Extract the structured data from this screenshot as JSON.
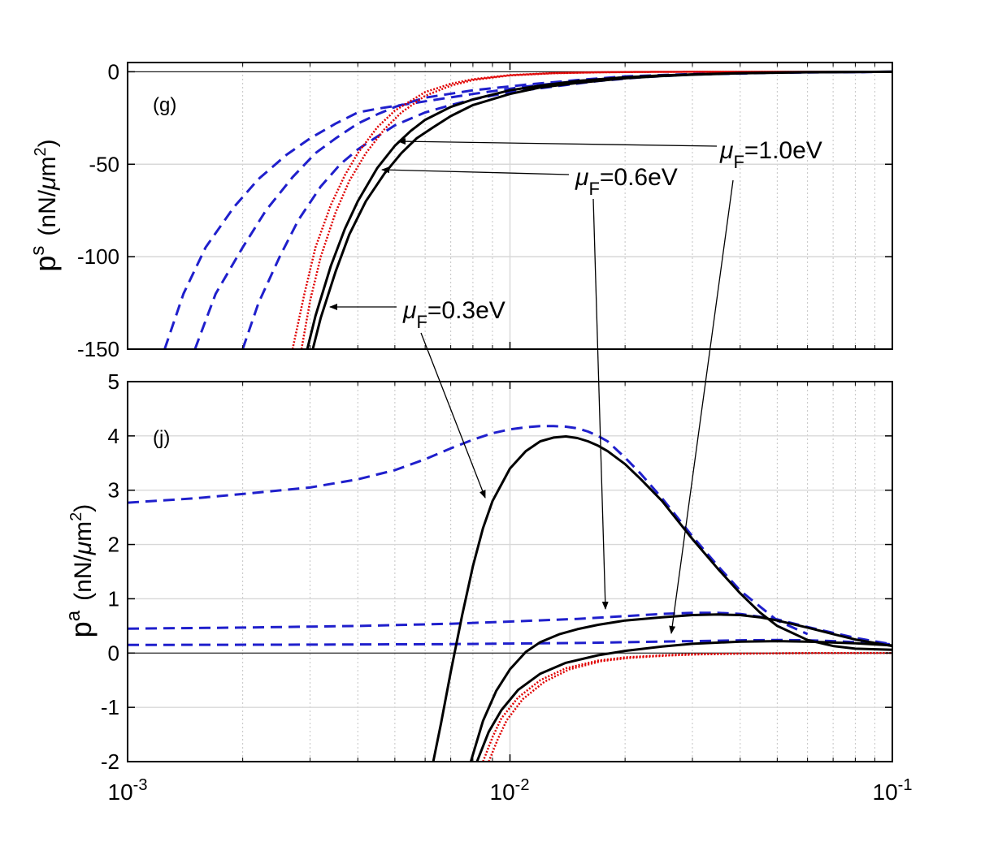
{
  "chart_data": [
    {
      "id": "g",
      "type": "line",
      "panel_label": "(g)",
      "xscale": "log",
      "xlim": [
        0.001,
        0.1
      ],
      "ylim": [
        -150,
        5
      ],
      "yticks": [
        0,
        -50,
        -100,
        -150
      ],
      "ytick_labels": [
        "0",
        "-50",
        "-100",
        "-150"
      ],
      "ylabel": {
        "base": "p",
        "sup": "s",
        "units_open": "(nN/",
        "mu": "μ",
        "units_mid": "m",
        "units_sup": "2",
        "units_close": ")"
      },
      "grid": true,
      "annotations": [
        {
          "mu": "μ",
          "sub": "F",
          "value": "=1.0eV",
          "points_to": [
            0.005,
            -34
          ]
        },
        {
          "mu": "μ",
          "sub": "F",
          "value": "=0.6eV",
          "points_to": [
            0.0046,
            -50
          ]
        },
        {
          "mu": "μ",
          "sub": "F",
          "value": "=0.3eV",
          "points_to": [
            0.0033,
            -127
          ]
        }
      ],
      "series": [
        {
          "name": "s-blue-dashed-a",
          "color": "#1f1fcc",
          "style": "dashed",
          "x": [
            0.00125,
            0.0014,
            0.0016,
            0.0019,
            0.0022,
            0.0026,
            0.003,
            0.0035,
            0.004,
            0.0045,
            0.006,
            0.008,
            0.011,
            0.015,
            0.02,
            0.03,
            0.05,
            0.1
          ],
          "y": [
            -150,
            -120,
            -95,
            -73,
            -58,
            -45,
            -36,
            -28,
            -22,
            -20,
            -16,
            -12,
            -8,
            -5,
            -3,
            -1.5,
            -0.5,
            0
          ]
        },
        {
          "name": "s-blue-dashed-b",
          "color": "#1f1fcc",
          "style": "dashed",
          "x": [
            0.0015,
            0.0017,
            0.002,
            0.0023,
            0.0027,
            0.0031,
            0.0035,
            0.004,
            0.0045,
            0.005,
            0.006,
            0.008,
            0.011,
            0.015,
            0.02,
            0.03,
            0.05,
            0.1
          ],
          "y": [
            -150,
            -120,
            -95,
            -75,
            -57,
            -44,
            -36,
            -28,
            -23,
            -19,
            -14,
            -10,
            -7,
            -4.5,
            -2.5,
            -1.2,
            -0.4,
            0
          ]
        },
        {
          "name": "s-blue-dashed-c",
          "color": "#1f1fcc",
          "style": "dashed",
          "x": [
            0.002,
            0.0022,
            0.0025,
            0.0028,
            0.0032,
            0.0036,
            0.004,
            0.0045,
            0.005,
            0.006,
            0.007,
            0.008,
            0.01,
            0.013,
            0.017,
            0.022,
            0.03,
            0.05,
            0.1
          ],
          "y": [
            -150,
            -125,
            -100,
            -80,
            -62,
            -50,
            -42,
            -35,
            -29,
            -22,
            -18,
            -15,
            -11,
            -8,
            -5,
            -3,
            -1.5,
            -0.4,
            0
          ]
        },
        {
          "name": "s-red-dotted-a",
          "color": "#e00000",
          "style": "dotted",
          "x": [
            0.0027,
            0.0029,
            0.0031,
            0.0034,
            0.0037,
            0.004,
            0.0045,
            0.005,
            0.006,
            0.007,
            0.008,
            0.01,
            0.013,
            0.017,
            0.022,
            0.03,
            0.05,
            0.1
          ],
          "y": [
            -150,
            -120,
            -95,
            -72,
            -56,
            -44,
            -30,
            -21,
            -11,
            -6.5,
            -4,
            -1.8,
            -0.7,
            -0.25,
            -0.1,
            0,
            0,
            0
          ]
        },
        {
          "name": "s-red-dotted-b",
          "color": "#e00000",
          "style": "dotted",
          "x": [
            0.00285,
            0.003,
            0.0032,
            0.0035,
            0.0038,
            0.0042,
            0.0047,
            0.0052,
            0.006,
            0.007,
            0.008,
            0.01,
            0.013,
            0.017,
            0.022,
            0.03,
            0.05,
            0.1
          ],
          "y": [
            -150,
            -124,
            -100,
            -76,
            -59,
            -44,
            -31,
            -22,
            -13,
            -7.5,
            -4.5,
            -2,
            -0.8,
            -0.3,
            -0.1,
            0,
            0,
            0
          ]
        },
        {
          "name": "s-black-solid-a",
          "color": "#000000",
          "style": "solid",
          "x": [
            0.00295,
            0.0031,
            0.0034,
            0.0037,
            0.004,
            0.0045,
            0.005,
            0.0055,
            0.006,
            0.007,
            0.008,
            0.01,
            0.012,
            0.015,
            0.02,
            0.025,
            0.03,
            0.04,
            0.06,
            0.1
          ],
          "y": [
            -150,
            -132,
            -105,
            -85,
            -70,
            -52,
            -40,
            -32,
            -26,
            -19,
            -15,
            -10,
            -7.5,
            -5,
            -3,
            -2,
            -1.4,
            -0.7,
            -0.2,
            0
          ]
        },
        {
          "name": "s-black-solid-b",
          "color": "#000000",
          "style": "solid",
          "x": [
            0.00305,
            0.0032,
            0.0035,
            0.0038,
            0.0042,
            0.0047,
            0.0052,
            0.0057,
            0.0063,
            0.007,
            0.008,
            0.01,
            0.012,
            0.015,
            0.02,
            0.025,
            0.03,
            0.04,
            0.06,
            0.1
          ],
          "y": [
            -150,
            -133,
            -108,
            -88,
            -70,
            -55,
            -44,
            -36,
            -30,
            -24,
            -18,
            -12,
            -8.5,
            -6,
            -3.5,
            -2.3,
            -1.6,
            -0.8,
            -0.25,
            0
          ]
        }
      ]
    },
    {
      "id": "j",
      "type": "line",
      "panel_label": "(j)",
      "xscale": "log",
      "xlim": [
        0.001,
        0.1
      ],
      "ylim": [
        -2,
        5
      ],
      "xticks": [
        0.001,
        0.01,
        0.1
      ],
      "xtick_labels": [
        {
          "base": "10",
          "exp": "-3"
        },
        {
          "base": "10",
          "exp": "-2"
        },
        {
          "base": "10",
          "exp": "-1"
        }
      ],
      "yticks": [
        5,
        4,
        3,
        2,
        1,
        0,
        -1,
        -2
      ],
      "ytick_labels": [
        "5",
        "4",
        "3",
        "2",
        "1",
        "0",
        "-1",
        "-2"
      ],
      "ylabel": {
        "base": "p",
        "sup": "a",
        "units_open": "(nN/",
        "mu": "μ",
        "units_mid": "m",
        "units_sup": "2",
        "units_close": ")"
      },
      "grid": true,
      "series": [
        {
          "name": "a-blue-dashed-0.3",
          "color": "#1f1fcc",
          "style": "dashed",
          "x": [
            0.001,
            0.0015,
            0.002,
            0.003,
            0.004,
            0.005,
            0.006,
            0.007,
            0.008,
            0.009,
            0.01,
            0.011,
            0.012,
            0.013,
            0.014,
            0.015,
            0.016,
            0.017,
            0.018,
            0.02,
            0.022,
            0.025,
            0.03,
            0.035,
            0.04,
            0.05,
            0.06
          ],
          "y": [
            2.77,
            2.85,
            2.93,
            3.05,
            3.2,
            3.37,
            3.57,
            3.77,
            3.93,
            4.05,
            4.12,
            4.16,
            4.18,
            4.18,
            4.17,
            4.14,
            4.08,
            4.0,
            3.9,
            3.6,
            3.3,
            2.85,
            2.15,
            1.6,
            1.15,
            0.6,
            0.35
          ]
        },
        {
          "name": "a-blue-dashed-0.6",
          "color": "#1f1fcc",
          "style": "dashed",
          "x": [
            0.001,
            0.002,
            0.004,
            0.007,
            0.01,
            0.015,
            0.02,
            0.025,
            0.03,
            0.035,
            0.04,
            0.05,
            0.06,
            0.08,
            0.1
          ],
          "y": [
            0.45,
            0.47,
            0.5,
            0.54,
            0.58,
            0.63,
            0.68,
            0.72,
            0.74,
            0.74,
            0.72,
            0.62,
            0.48,
            0.28,
            0.16
          ]
        },
        {
          "name": "a-blue-dashed-1.0",
          "color": "#1f1fcc",
          "style": "dashed",
          "x": [
            0.001,
            0.003,
            0.007,
            0.01,
            0.015,
            0.02,
            0.03,
            0.04,
            0.05,
            0.06,
            0.07,
            0.08,
            0.1
          ],
          "y": [
            0.15,
            0.155,
            0.165,
            0.175,
            0.185,
            0.2,
            0.22,
            0.235,
            0.24,
            0.235,
            0.22,
            0.2,
            0.16
          ]
        },
        {
          "name": "a-red-dotted-a",
          "color": "#e00000",
          "style": "dotted",
          "x": [
            0.0085,
            0.009,
            0.0095,
            0.0105,
            0.012,
            0.014,
            0.017,
            0.02,
            0.025,
            0.03,
            0.04,
            0.06,
            0.1
          ],
          "y": [
            -2,
            -1.55,
            -1.2,
            -0.82,
            -0.5,
            -0.28,
            -0.14,
            -0.08,
            -0.04,
            -0.02,
            -0.01,
            0,
            0
          ]
        },
        {
          "name": "a-red-dotted-b",
          "color": "#e00000",
          "style": "dotted",
          "x": [
            0.0088,
            0.0093,
            0.0098,
            0.0108,
            0.0123,
            0.0143,
            0.0173,
            0.0205,
            0.026,
            0.031,
            0.041,
            0.062,
            0.1
          ],
          "y": [
            -2,
            -1.58,
            -1.24,
            -0.85,
            -0.53,
            -0.3,
            -0.15,
            -0.09,
            -0.045,
            -0.025,
            -0.01,
            0,
            0
          ]
        },
        {
          "name": "a-black-solid-0.3",
          "color": "#000000",
          "style": "solid",
          "x": [
            0.0063,
            0.0066,
            0.007,
            0.0075,
            0.008,
            0.0085,
            0.009,
            0.01,
            0.011,
            0.012,
            0.013,
            0.014,
            0.015,
            0.016,
            0.017,
            0.018,
            0.02,
            0.022,
            0.025,
            0.03,
            0.035,
            0.04,
            0.045,
            0.05,
            0.06,
            0.07,
            0.08,
            0.1
          ],
          "y": [
            -2,
            -1.3,
            -0.35,
            0.7,
            1.6,
            2.3,
            2.8,
            3.4,
            3.72,
            3.9,
            3.97,
            3.99,
            3.96,
            3.9,
            3.82,
            3.72,
            3.48,
            3.2,
            2.8,
            2.1,
            1.55,
            1.1,
            0.75,
            0.5,
            0.24,
            0.13,
            0.08,
            0.06
          ]
        },
        {
          "name": "a-black-solid-0.6",
          "color": "#000000",
          "style": "solid",
          "x": [
            0.0079,
            0.0085,
            0.0092,
            0.01,
            0.011,
            0.012,
            0.0135,
            0.015,
            0.017,
            0.02,
            0.025,
            0.03,
            0.035,
            0.04,
            0.045,
            0.05,
            0.06,
            0.07,
            0.08,
            0.1
          ],
          "y": [
            -2,
            -1.25,
            -0.7,
            -0.3,
            0.02,
            0.2,
            0.35,
            0.44,
            0.52,
            0.6,
            0.66,
            0.7,
            0.71,
            0.7,
            0.66,
            0.6,
            0.47,
            0.35,
            0.25,
            0.13
          ]
        },
        {
          "name": "a-black-solid-1.0",
          "color": "#000000",
          "style": "solid",
          "x": [
            0.0082,
            0.0088,
            0.0095,
            0.0105,
            0.012,
            0.014,
            0.017,
            0.02,
            0.025,
            0.03,
            0.04,
            0.05,
            0.06,
            0.08,
            0.1
          ],
          "y": [
            -2,
            -1.45,
            -1.05,
            -0.68,
            -0.38,
            -0.18,
            -0.04,
            0.04,
            0.12,
            0.17,
            0.21,
            0.22,
            0.21,
            0.18,
            0.14
          ]
        }
      ]
    }
  ]
}
